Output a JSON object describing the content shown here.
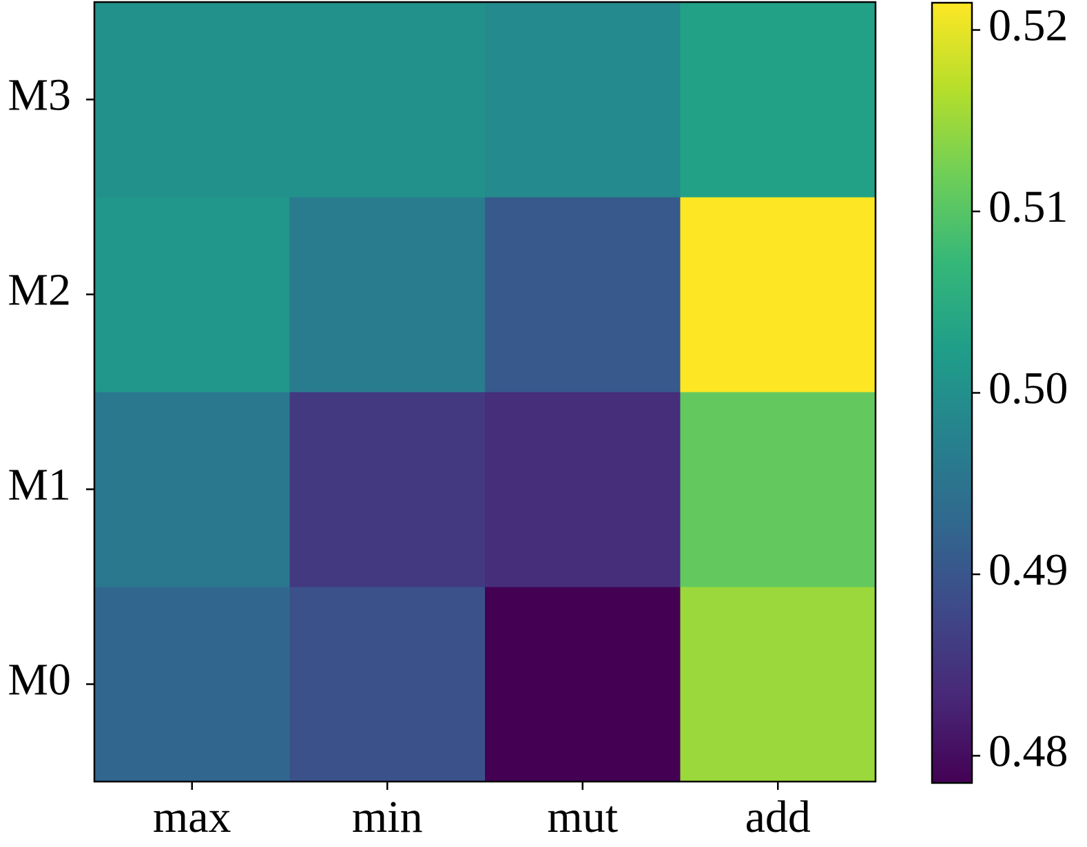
{
  "chart_data": {
    "type": "heatmap",
    "x_categories": [
      "max",
      "min",
      "mut",
      "add"
    ],
    "y_categories": [
      "M0",
      "M1",
      "M2",
      "M3"
    ],
    "values": [
      [
        0.4927,
        0.4893,
        0.4785,
        0.515
      ],
      [
        0.4957,
        0.4858,
        0.4841,
        0.511
      ],
      [
        0.501,
        0.4965,
        0.4905,
        0.5215
      ],
      [
        0.5,
        0.5,
        0.499,
        0.503
      ]
    ],
    "colormap": "viridis",
    "clim": [
      0.4785,
      0.5215
    ],
    "cticks": [
      0.48,
      0.49,
      0.5,
      0.51,
      0.52
    ],
    "cticks_labels": [
      "0.48",
      "0.49",
      "0.50",
      "0.51",
      "0.52"
    ]
  }
}
